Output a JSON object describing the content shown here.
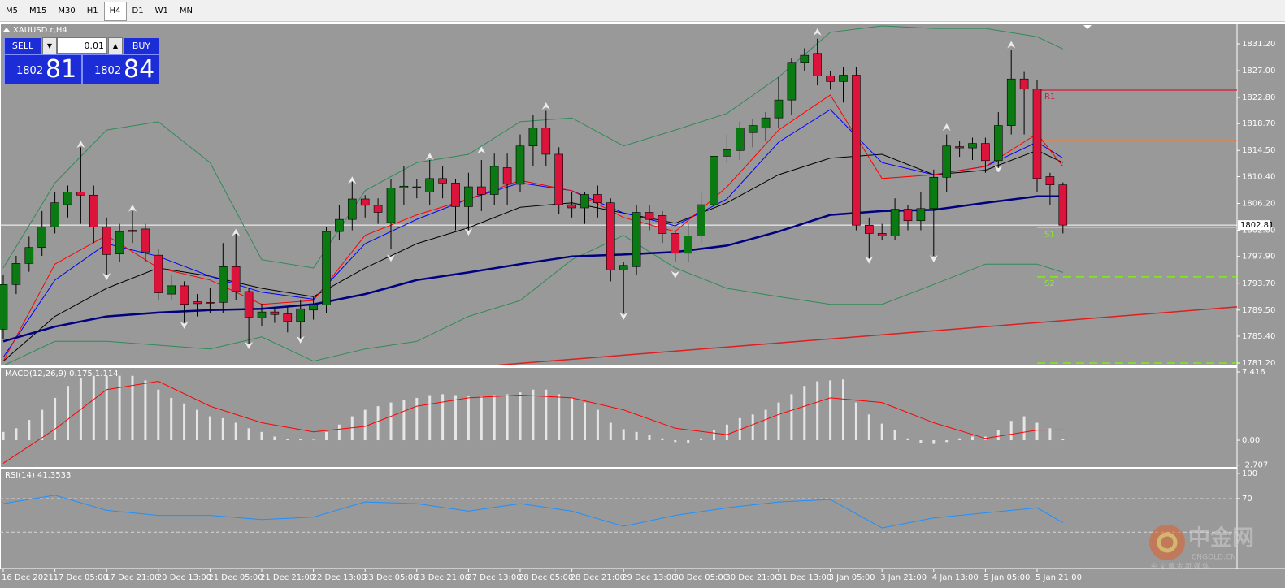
{
  "toolbar": {
    "timeframes": [
      "M5",
      "M15",
      "M30",
      "H1",
      "H4",
      "D1",
      "W1",
      "MN"
    ],
    "active": "H4"
  },
  "trade_panel": {
    "sell": "SELL",
    "buy": "BUY",
    "lot": "0.01",
    "bid_big": "1802",
    "bid_small": "81",
    "ask_big": "1802",
    "ask_small": "84"
  },
  "watermark": {
    "logo": "中金网",
    "site": "CNGOLD.CN",
    "slogan": "中 文 黄 金 新 媒 体"
  },
  "chart_data": [
    {
      "type": "candlestick",
      "title": "XAUUSD.r,H4",
      "up_color": "#0b7a12",
      "down_color": "#dc143c",
      "categories": [
        "16 Dec 2021",
        null,
        null,
        null,
        "17 Dec 05:00",
        null,
        null,
        null,
        "17 Dec 21:00",
        null,
        null,
        null,
        "20 Dec 13:00",
        null,
        null,
        null,
        "21 Dec 05:00",
        null,
        null,
        null,
        "21 Dec 21:00",
        null,
        null,
        null,
        "22 Dec 13:00",
        null,
        null,
        null,
        "23 Dec 05:00",
        null,
        null,
        null,
        "23 Dec 21:00",
        null,
        null,
        null,
        "27 Dec 13:00",
        null,
        null,
        null,
        "28 Dec 05:00",
        null,
        null,
        null,
        "28 Dec 21:00",
        null,
        null,
        null,
        "29 Dec 13:00",
        null,
        null,
        null,
        "30 Dec 05:00",
        null,
        null,
        null,
        "30 Dec 21:00",
        null,
        null,
        null,
        "31 Dec 13:00",
        null,
        null,
        null,
        "3 Jan 05:00",
        null,
        null,
        null,
        "3 Jan 21:00",
        null,
        null,
        null,
        "4 Jan 13:00",
        null,
        null,
        null,
        "5 Jan 05:00",
        null,
        null,
        null,
        "5 Jan 21:00",
        null,
        null
      ],
      "open": [
        1786.5,
        1793.5,
        1796.8,
        1799.3,
        1802.5,
        1806,
        1808,
        1807.5,
        1802.5,
        1798.3,
        1802,
        1802.2,
        1798.1,
        1792,
        1793.3,
        1790.8,
        1790.7,
        1790.7,
        1796.3,
        1792.4,
        1788.3,
        1789.2,
        1788.9,
        1787.7,
        1789.5,
        1790.3,
        1801.8,
        1803.7,
        1806.9,
        1805.9,
        1803.2,
        1808.6,
        1808.7,
        1808,
        1810.1,
        1809.4,
        1805.7,
        1808.8,
        1807.6,
        1811.8,
        1809.2,
        1815.2,
        1818,
        1813.9,
        1806,
        1805.5,
        1807.6,
        1806.3,
        1795.8,
        1796.3,
        1804.8,
        1804.3,
        1801.5,
        1798.4,
        1801.1,
        1806,
        1813.6,
        1814.5,
        1817.3,
        1818,
        1819.6,
        1822.4,
        1828.3,
        1829.7,
        1826.2,
        1825.3,
        1826.3,
        1802.8,
        1801.5,
        1801.1,
        1805.3,
        1803.5,
        1805.4,
        1810.3,
        1815.1,
        1814.9,
        1815.6,
        1812.9,
        1818.4,
        1825.7,
        1824.1,
        1810.4,
        1809.1
      ],
      "high": [
        1795,
        1798,
        1801,
        1805,
        1808,
        1809,
        1815,
        1809,
        1804,
        1803,
        1805,
        1803,
        1799,
        1795,
        1794,
        1792,
        1793,
        1800,
        1802,
        1793,
        1790.5,
        1790,
        1790,
        1791,
        1791.5,
        1802.5,
        1806,
        1810,
        1807.5,
        1807,
        1810,
        1812,
        1810,
        1813,
        1812,
        1810,
        1811,
        1813,
        1814,
        1814,
        1817,
        1820,
        1820.7,
        1815,
        1808,
        1808,
        1809,
        1807,
        1797,
        1806,
        1806,
        1805,
        1802,
        1803,
        1808,
        1815,
        1817,
        1819,
        1819.5,
        1820.5,
        1826,
        1829,
        1830.5,
        1832,
        1827,
        1827.5,
        1827.5,
        1804,
        1803,
        1807,
        1806,
        1808,
        1811.5,
        1817,
        1816,
        1816.5,
        1816.5,
        1820.5,
        1830.2,
        1826.8,
        1825.5,
        1811,
        1809.5
      ],
      "low": [
        1785,
        1792,
        1795.5,
        1798,
        1801.5,
        1804,
        1803,
        1800,
        1795,
        1797,
        1800,
        1797,
        1791,
        1791,
        1787.5,
        1788.5,
        1789,
        1789,
        1791,
        1784,
        1787,
        1787.5,
        1786,
        1785,
        1788,
        1789,
        1800.5,
        1802,
        1804,
        1803,
        1799,
        1806,
        1807,
        1806,
        1807,
        1802,
        1802,
        1805,
        1806,
        1806,
        1808,
        1812,
        1812,
        1804.5,
        1804,
        1803,
        1804,
        1794,
        1789,
        1795,
        1802,
        1800,
        1797,
        1797,
        1800,
        1805,
        1812.5,
        1813,
        1815,
        1816,
        1818,
        1820,
        1827,
        1824.7,
        1824,
        1822,
        1802,
        1797,
        1800.5,
        1800.5,
        1802,
        1802,
        1798,
        1808,
        1813.5,
        1813,
        1811,
        1811,
        1817,
        1817,
        1808,
        1806,
        1801.5
      ],
      "close": [
        1793.5,
        1796.8,
        1799.3,
        1802.5,
        1806.3,
        1808,
        1807.5,
        1802.5,
        1798.2,
        1801.8,
        1801.8,
        1798.6,
        1792.2,
        1793.3,
        1790.4,
        1790.5,
        1790.6,
        1796.3,
        1792.4,
        1788.4,
        1789.2,
        1788.8,
        1787.7,
        1789.7,
        1790.3,
        1801.8,
        1803.7,
        1806.9,
        1805.9,
        1804.8,
        1808.6,
        1808.9,
        1808.8,
        1810.1,
        1809.4,
        1805.7,
        1808.8,
        1807.6,
        1812,
        1809.2,
        1815.2,
        1818,
        1813.9,
        1806,
        1805.5,
        1807.6,
        1806.3,
        1795.8,
        1796.5,
        1804.8,
        1803.7,
        1801.5,
        1798.4,
        1801.1,
        1806,
        1813.6,
        1814.6,
        1818,
        1818.4,
        1819.6,
        1822.4,
        1828.3,
        1829.4,
        1826.2,
        1825.3,
        1826.3,
        1802.8,
        1801.5,
        1801.1,
        1805.3,
        1803.5,
        1805.4,
        1810.3,
        1815.2,
        1814.9,
        1815.6,
        1812.9,
        1818.4,
        1825.7,
        1824.1,
        1810.1,
        1809.1,
        1802.81
      ],
      "series": [
        {
          "color": "#2e8b57",
          "width": 1,
          "x": [
            0,
            4,
            8,
            12,
            16,
            20,
            24,
            28,
            32,
            36,
            40,
            44,
            48,
            52,
            56,
            60,
            64,
            68,
            72,
            76,
            80,
            82
          ],
          "values": [
            1796.1,
            1809.4,
            1817.7,
            1819.0,
            1812.6,
            1797.4,
            1796.1,
            1808.2,
            1812.6,
            1813.9,
            1819.0,
            1819.6,
            1815.2,
            1817.7,
            1820.3,
            1826.0,
            1833.0,
            1834.0,
            1833.6,
            1833.6,
            1832.3,
            1830.4
          ]
        },
        {
          "color": "#2e8b57",
          "width": 1,
          "x": [
            0,
            4,
            8,
            12,
            16,
            20,
            24,
            28,
            32,
            36,
            40,
            44,
            48,
            52,
            56,
            60,
            64,
            68,
            72,
            76,
            80,
            82
          ],
          "values": [
            1780.8,
            1784.6,
            1784.6,
            1784.0,
            1783.4,
            1785.3,
            1781.5,
            1783.4,
            1784.6,
            1788.5,
            1791.0,
            1797.4,
            1801.2,
            1796.1,
            1792.9,
            1791.6,
            1790.4,
            1790.4,
            1793.5,
            1796.7,
            1796.7,
            1795.4
          ]
        },
        {
          "color": "#000000",
          "width": 1,
          "x": [
            0,
            4,
            8,
            12,
            16,
            20,
            24,
            28,
            32,
            36,
            40,
            44,
            48,
            52,
            56,
            60,
            64,
            68,
            72,
            76,
            80,
            82
          ],
          "values": [
            1781.5,
            1788.5,
            1792.9,
            1796.1,
            1794.8,
            1792.9,
            1791.6,
            1796.1,
            1799.9,
            1802.4,
            1805.6,
            1806.3,
            1804.7,
            1803.1,
            1806.3,
            1810.7,
            1813.3,
            1813.9,
            1810.7,
            1811.4,
            1814.5,
            1812.6
          ]
        },
        {
          "color": "#0000ff",
          "width": 1,
          "x": [
            0,
            4,
            8,
            12,
            16,
            20,
            24,
            28,
            32,
            36,
            40,
            44,
            48,
            52,
            56,
            60,
            64,
            68,
            72,
            76,
            80,
            82
          ],
          "values": [
            1782.1,
            1794.2,
            1799.9,
            1797.9,
            1794.8,
            1792.3,
            1791.2,
            1799.9,
            1803.7,
            1806.9,
            1809.4,
            1808.2,
            1804.7,
            1802.7,
            1806.9,
            1815.8,
            1820.9,
            1812.6,
            1810.7,
            1812.0,
            1815.8,
            1813.3
          ]
        },
        {
          "color": "#ff0000",
          "width": 1,
          "x": [
            0,
            4,
            8,
            12,
            16,
            20,
            24,
            28,
            32,
            36,
            40,
            44,
            48,
            52,
            56,
            60,
            64,
            68,
            72,
            76,
            80,
            82
          ],
          "values": [
            1781.5,
            1796.7,
            1801.2,
            1796.1,
            1794.2,
            1790.4,
            1791.0,
            1801.2,
            1804.4,
            1806.9,
            1809.8,
            1808.2,
            1804.0,
            1801.8,
            1808.8,
            1817.7,
            1823.2,
            1810.1,
            1810.7,
            1812.0,
            1817.1,
            1812.0
          ]
        },
        {
          "color": "#000080",
          "width": 2.5,
          "x": [
            0,
            4,
            8,
            12,
            16,
            20,
            24,
            28,
            32,
            36,
            40,
            44,
            48,
            52,
            56,
            60,
            64,
            68,
            72,
            76,
            80,
            82
          ],
          "values": [
            1784.6,
            1786.9,
            1788.5,
            1789.1,
            1789.5,
            1789.7,
            1790.4,
            1792.0,
            1794.2,
            1795.4,
            1796.7,
            1797.9,
            1798.2,
            1798.6,
            1799.6,
            1801.8,
            1804.4,
            1805.0,
            1805.2,
            1806.3,
            1807.3,
            1807.3
          ]
        }
      ],
      "trendline": {
        "color": "#dd1f1f",
        "x": [
          38.4,
          95.5
        ],
        "values": [
          1780.9,
          1790.0
        ]
      },
      "fractals_up": {
        "x": [
          6,
          10,
          18,
          27,
          33,
          37,
          42,
          63,
          73,
          78
        ],
        "values": [
          1815.4,
          1805.4,
          1801.6,
          1809.8,
          1813.5,
          1814.5,
          1821.4,
          1833.0,
          1818.1,
          1831.0
        ]
      },
      "fractals_down": {
        "x": [
          8,
          14,
          19,
          23,
          30,
          36,
          48,
          52,
          67,
          72,
          77
        ],
        "values": [
          1794.8,
          1787.2,
          1784.0,
          1784.9,
          1797.7,
          1801.8,
          1788.6,
          1795.1,
          1797.4,
          1797.6,
          1811.6
        ]
      },
      "levels": [
        {
          "name": "R1",
          "value": 1823.95,
          "x": 80,
          "color": "#dc143c",
          "dash": false
        },
        {
          "value": 1816.05,
          "x": 80,
          "color": "#f0803c",
          "dash": false
        },
        {
          "name": "S1",
          "value": 1802.4,
          "x": 80,
          "color": "#7cfc00",
          "dash": false
        },
        {
          "name": "S2",
          "value": 1794.7,
          "x": 80,
          "color": "#7cfc00",
          "dash": true
        },
        {
          "value": 1781.2,
          "x": 80,
          "color": "#7cfc00",
          "dash": true
        }
      ],
      "current_price": {
        "value": 1802.81,
        "label": "1802.81"
      },
      "ylim": [
        1780.82,
        1834.25
      ],
      "yticks": [
        {
          "value": 1831.2,
          "label": "1831.20"
        },
        {
          "value": 1827.0,
          "label": "1827.00"
        },
        {
          "value": 1822.8,
          "label": "1822.80"
        },
        {
          "value": 1818.7,
          "label": "1818.70"
        },
        {
          "value": 1814.5,
          "label": "1814.50"
        },
        {
          "value": 1810.4,
          "label": "1810.40"
        },
        {
          "value": 1806.2,
          "label": "1806.20"
        },
        {
          "value": 1802.0,
          "label": "1802.00"
        },
        {
          "value": 1797.9,
          "label": "1797.90"
        },
        {
          "value": 1793.7,
          "label": "1793.70"
        },
        {
          "value": 1789.5,
          "label": "1789.50"
        },
        {
          "value": 1785.4,
          "label": "1785.40"
        },
        {
          "value": 1781.2,
          "label": "1781.20"
        }
      ]
    },
    {
      "type": "bar",
      "title": "MACD(12,26,9) 0.175 1.114",
      "color": "#e6e6e6",
      "values": [
        0.9,
        1.3,
        2.2,
        3.3,
        4.6,
        5.9,
        6.8,
        7.0,
        7.0,
        7.0,
        7.0,
        6.5,
        5.5,
        4.6,
        4.0,
        3.3,
        2.6,
        2.4,
        1.9,
        1.3,
        0.9,
        0.4,
        0.1,
        0.1,
        0.05,
        0.9,
        1.7,
        2.6,
        3.3,
        3.7,
        4.1,
        4.4,
        4.6,
        4.9,
        5.0,
        4.9,
        4.8,
        4.8,
        4.9,
        5.0,
        5.2,
        5.5,
        5.5,
        5.0,
        4.6,
        4.1,
        3.3,
        1.9,
        1.2,
        0.9,
        0.6,
        0.2,
        -0.2,
        -0.3,
        0.2,
        1.1,
        1.7,
        2.4,
        2.8,
        3.3,
        4.1,
        5.0,
        5.9,
        6.4,
        6.5,
        6.6,
        4.1,
        2.8,
        1.8,
        1.1,
        0.2,
        -0.3,
        -0.4,
        -0.2,
        0.2,
        0.4,
        0.4,
        1.1,
        2.1,
        2.6,
        1.9,
        1.3,
        0.175
      ],
      "signal": {
        "color": "#ff0000",
        "x": [
          0,
          4,
          8,
          12,
          16,
          20,
          24,
          28,
          32,
          36,
          40,
          44,
          48,
          52,
          56,
          60,
          64,
          68,
          72,
          76,
          80,
          82
        ],
        "values": [
          -2.5,
          1.2,
          5.5,
          6.4,
          3.7,
          1.9,
          0.9,
          1.5,
          3.7,
          4.6,
          4.9,
          4.6,
          3.3,
          1.3,
          0.6,
          2.8,
          4.6,
          4.1,
          1.9,
          0.2,
          1.1,
          1.114
        ]
      },
      "ylim": [
        -2.91,
        7.86
      ],
      "yticks": [
        7.416,
        {
          "value": 0,
          "label": "0.00"
        },
        -2.707
      ]
    },
    {
      "type": "line",
      "title": "RSI(14) 41.3533",
      "color": "#1e90ff",
      "x": [
        0,
        4,
        8,
        12,
        16,
        20,
        24,
        28,
        32,
        36,
        40,
        44,
        48,
        52,
        56,
        60,
        64,
        68,
        72,
        76,
        80,
        82
      ],
      "values": [
        64,
        74,
        56,
        50,
        50,
        45,
        48,
        66,
        64,
        55,
        64,
        55,
        37,
        50,
        59,
        66,
        69,
        35,
        47,
        53,
        59,
        41.3533
      ],
      "levels": [
        70,
        30
      ],
      "ylim": [
        -13.3,
        104.8
      ],
      "yticks": [
        100,
        70
      ]
    }
  ]
}
